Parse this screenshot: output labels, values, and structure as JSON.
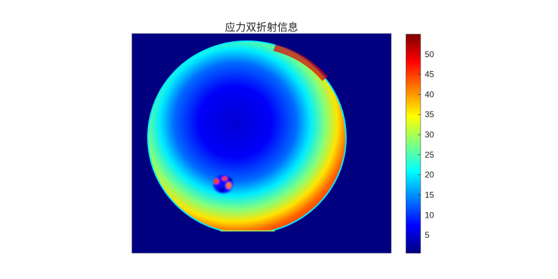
{
  "chart_data": {
    "type": "heatmap",
    "title": "应力双折射信息",
    "xlabel": "",
    "ylabel": "",
    "axes_ticks_visible": false,
    "colormap": "jet",
    "clim": [
      0.5,
      55
    ],
    "colorbar": {
      "position": "right",
      "ticks": [
        5,
        10,
        15,
        20,
        25,
        30,
        35,
        40,
        45,
        50
      ],
      "tick_labels": [
        "5",
        "10",
        "15",
        "20",
        "25",
        "30",
        "35",
        "40",
        "45",
        "50"
      ]
    },
    "regions": {
      "background_value": 0.5,
      "disc_center_value": 5,
      "disc_mid_value": 20,
      "disc_rim_value": 45,
      "rim_peak_value": 54,
      "defect_values": [
        3,
        45
      ]
    }
  }
}
